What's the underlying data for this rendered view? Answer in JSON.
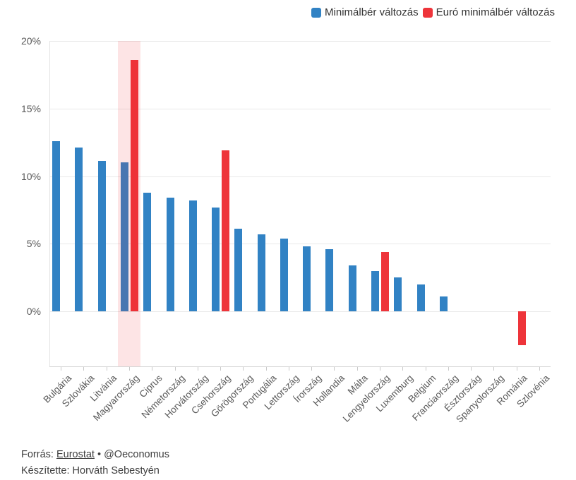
{
  "page": {
    "background": "#ffffff"
  },
  "chart_data": {
    "type": "bar",
    "title": "",
    "categories": [
      "Bulgária",
      "Szlovákia",
      "Litvánia",
      "Magyarország",
      "Ciprus",
      "Németország",
      "Horvátország",
      "Csehország",
      "Görögország",
      "Portugália",
      "Lettország",
      "Írország",
      "Hollandia",
      "Málta",
      "Lengyelország",
      "Luxemburg",
      "Belgium",
      "Franciaország",
      "Észtország",
      "Spanyolország",
      "Románia",
      "Szlovénia"
    ],
    "series": [
      {
        "name": "Minimálbér változás",
        "color": "#3182c4",
        "values": [
          12.6,
          12.1,
          11.1,
          11.0,
          8.8,
          8.4,
          8.2,
          7.7,
          6.1,
          5.7,
          5.4,
          4.8,
          4.6,
          3.4,
          3.0,
          2.5,
          2.0,
          1.1,
          0,
          0,
          null,
          0
        ]
      },
      {
        "name": "Euró minimálbér változás",
        "color": "#ee343a",
        "values": [
          null,
          null,
          null,
          18.6,
          null,
          null,
          null,
          11.9,
          null,
          null,
          null,
          null,
          null,
          null,
          4.4,
          null,
          null,
          null,
          null,
          null,
          -2.5,
          null
        ]
      }
    ],
    "yticks": [
      {
        "value": 0,
        "label": "0%"
      },
      {
        "value": 5,
        "label": "5%"
      },
      {
        "value": 10,
        "label": "10%"
      },
      {
        "value": 15,
        "label": "15%"
      },
      {
        "value": 20,
        "label": "20%"
      }
    ],
    "ylim": [
      -4.1,
      20
    ],
    "grid": "horizontal",
    "legend_position": "top-right",
    "highlight": {
      "category": "Magyarország",
      "color": "rgba(238,32,40,0.12)"
    }
  },
  "footer": {
    "source_prefix": "Forrás: ",
    "source_link": "Eurostat",
    "source_suffix": " • @Oeconomus",
    "author": "Készítette: Horváth Sebestyén"
  }
}
